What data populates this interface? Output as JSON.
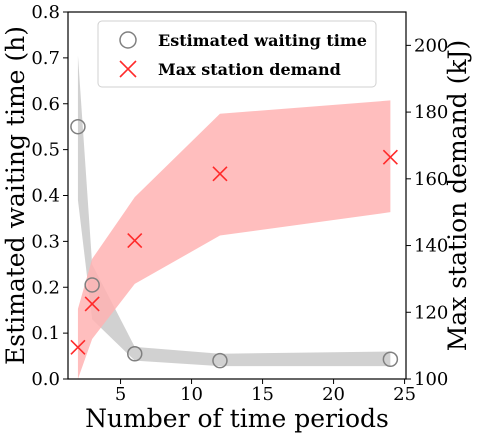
{
  "chart_data": {
    "type": "scatter",
    "xlabel": "Number of time periods",
    "ylabel_left": "Estimated waiting time (h)",
    "ylabel_right": "Max station demand (kJ)",
    "xlim": [
      1.3,
      25.1
    ],
    "ylim_left": [
      0.0,
      0.8
    ],
    "ylim_right": [
      100,
      210
    ],
    "x_ticks": [
      5,
      10,
      15,
      20,
      25
    ],
    "y_left_ticks": [
      0.0,
      0.1,
      0.2,
      0.3,
      0.4,
      0.5,
      0.6,
      0.7,
      0.8
    ],
    "y_right_ticks": [
      100,
      120,
      140,
      160,
      180,
      200
    ],
    "grid": false,
    "legend_position": "top-center",
    "series": [
      {
        "name": "Estimated waiting time",
        "axis": "left",
        "marker": "circle-open",
        "color": "#808080",
        "points": [
          {
            "x": 2,
            "y": 0.55
          },
          {
            "x": 3,
            "y": 0.205
          },
          {
            "x": 6,
            "y": 0.055
          },
          {
            "x": 12,
            "y": 0.04
          },
          {
            "x": 24,
            "y": 0.043
          }
        ],
        "band": {
          "color": "#cccccc",
          "x": [
            2,
            3,
            6,
            12,
            24
          ],
          "upper": [
            0.705,
            0.25,
            0.07,
            0.055,
            0.06
          ],
          "lower": [
            0.39,
            0.13,
            0.04,
            0.028,
            0.028
          ]
        }
      },
      {
        "name": "Max station demand",
        "axis": "right",
        "marker": "x",
        "color": "#ff2a2a",
        "points": [
          {
            "x": 2,
            "y": 109.5
          },
          {
            "x": 3,
            "y": 122.5
          },
          {
            "x": 6,
            "y": 141.5
          },
          {
            "x": 12,
            "y": 161.5
          },
          {
            "x": 24,
            "y": 166.5
          }
        ],
        "band": {
          "color": "#ffb3b3",
          "x": [
            2,
            3,
            6,
            12,
            24
          ],
          "upper": [
            121,
            136,
            154.5,
            179.5,
            183.5
          ],
          "lower": [
            100,
            112,
            128.5,
            143,
            150
          ]
        }
      }
    ]
  }
}
